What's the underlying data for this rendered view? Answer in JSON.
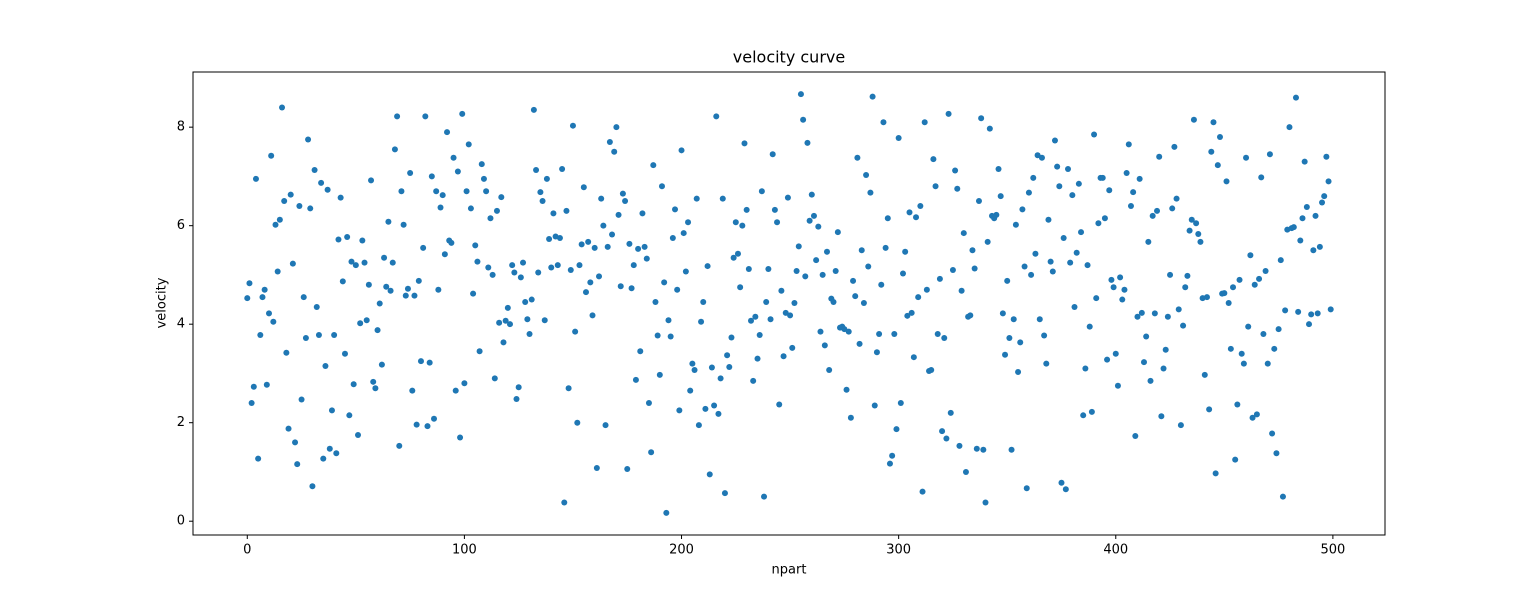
{
  "chart_data": {
    "type": "scatter",
    "title": "velocity curve",
    "xlabel": "npart",
    "ylabel": "velocity",
    "color": "#1f77b4",
    "xlim": [
      -25,
      524
    ],
    "ylim": [
      -0.28,
      9.12
    ],
    "xticks": [
      0,
      100,
      200,
      300,
      400,
      500
    ],
    "yticks": [
      0,
      2,
      4,
      6,
      8
    ],
    "grid": false,
    "x": [
      0,
      1,
      2,
      3,
      4,
      5,
      6,
      7,
      8,
      9,
      10,
      11,
      12,
      13,
      14,
      15,
      16,
      17,
      18,
      19,
      20,
      21,
      22,
      23,
      24,
      25,
      26,
      27,
      28,
      29,
      30,
      31,
      32,
      33,
      34,
      35,
      36,
      37,
      38,
      39,
      40,
      41,
      42,
      43,
      44,
      45,
      46,
      47,
      48,
      49,
      50,
      51,
      52,
      53,
      54,
      55,
      56,
      57,
      58,
      59,
      60,
      61,
      62,
      63,
      64,
      65,
      66,
      67,
      68,
      69,
      70,
      71,
      72,
      73,
      74,
      75,
      76,
      77,
      78,
      79,
      80,
      81,
      82,
      83,
      84,
      85,
      86,
      87,
      88,
      89,
      90,
      91,
      92,
      93,
      94,
      95,
      96,
      97,
      98,
      99,
      100,
      101,
      102,
      103,
      104,
      105,
      106,
      107,
      108,
      109,
      110,
      111,
      112,
      113,
      114,
      115,
      116,
      117,
      118,
      119,
      120,
      121,
      122,
      123,
      124,
      125,
      126,
      127,
      128,
      129,
      130,
      131,
      132,
      133,
      134,
      135,
      136,
      137,
      138,
      139,
      140,
      141,
      142,
      143,
      144,
      145,
      146,
      147,
      148,
      149,
      150,
      151,
      152,
      153,
      154,
      155,
      156,
      157,
      158,
      159,
      160,
      161,
      162,
      163,
      164,
      165,
      166,
      167,
      168,
      169,
      170,
      171,
      172,
      173,
      174,
      175,
      176,
      177,
      178,
      179,
      180,
      181,
      182,
      183,
      184,
      185,
      186,
      187,
      188,
      189,
      190,
      191,
      192,
      193,
      194,
      195,
      196,
      197,
      198,
      199,
      200,
      201,
      202,
      203,
      204,
      205,
      206,
      207,
      208,
      209,
      210,
      211,
      212,
      213,
      214,
      215,
      216,
      217,
      218,
      219,
      220,
      221,
      222,
      223,
      224,
      225,
      226,
      227,
      228,
      229,
      230,
      231,
      232,
      233,
      234,
      235,
      236,
      237,
      238,
      239,
      240,
      241,
      242,
      243,
      244,
      245,
      246,
      247,
      248,
      249,
      250,
      251,
      252,
      253,
      254,
      255,
      256,
      257,
      258,
      259,
      260,
      261,
      262,
      263,
      264,
      265,
      266,
      267,
      268,
      269,
      270,
      271,
      272,
      273,
      274,
      275,
      276,
      277,
      278,
      279,
      280,
      281,
      282,
      283,
      284,
      285,
      286,
      287,
      288,
      289,
      290,
      291,
      292,
      293,
      294,
      295,
      296,
      297,
      298,
      299,
      300,
      301,
      302,
      303,
      304,
      305,
      306,
      307,
      308,
      309,
      310,
      311,
      312,
      313,
      314,
      315,
      316,
      317,
      318,
      319,
      320,
      321,
      322,
      323,
      324,
      325,
      326,
      327,
      328,
      329,
      330,
      331,
      332,
      333,
      334,
      335,
      336,
      337,
      338,
      339,
      340,
      341,
      342,
      343,
      344,
      345,
      346,
      347,
      348,
      349,
      350,
      351,
      352,
      353,
      354,
      355,
      356,
      357,
      358,
      359,
      360,
      361,
      362,
      363,
      364,
      365,
      366,
      367,
      368,
      369,
      370,
      371,
      372,
      373,
      374,
      375,
      376,
      377,
      378,
      379,
      380,
      381,
      382,
      383,
      384,
      385,
      386,
      387,
      388,
      389,
      390,
      391,
      392,
      393,
      394,
      395,
      396,
      397,
      398,
      399,
      400,
      401,
      402,
      403,
      404,
      405,
      406,
      407,
      408,
      409,
      410,
      411,
      412,
      413,
      414,
      415,
      416,
      417,
      418,
      419,
      420,
      421,
      422,
      423,
      424,
      425,
      426,
      427,
      428,
      429,
      430,
      431,
      432,
      433,
      434,
      435,
      436,
      437,
      438,
      439,
      440,
      441,
      442,
      443,
      444,
      445,
      446,
      447,
      448,
      449,
      450,
      451,
      452,
      453,
      454,
      455,
      456,
      457,
      458,
      459,
      460,
      461,
      462,
      463,
      464,
      465,
      466,
      467,
      468,
      469,
      470,
      471,
      472,
      473,
      474,
      475,
      476,
      477,
      478,
      479,
      480,
      481,
      482,
      483,
      484,
      485,
      486,
      487,
      488,
      489,
      490,
      491,
      492,
      493,
      494,
      495,
      496,
      497,
      498,
      499
    ],
    "values": [
      4.53,
      4.83,
      2.4,
      2.73,
      6.95,
      1.27,
      3.78,
      4.55,
      4.7,
      2.77,
      4.22,
      7.42,
      4.05,
      6.02,
      5.07,
      6.12,
      8.4,
      6.5,
      3.42,
      1.88,
      6.63,
      5.23,
      1.6,
      1.16,
      6.4,
      2.47,
      4.55,
      3.72,
      7.75,
      6.35,
      0.71,
      7.13,
      4.35,
      3.78,
      6.87,
      1.27,
      3.15,
      6.73,
      1.47,
      2.25,
      3.78,
      1.38,
      5.72,
      6.57,
      4.87,
      3.4,
      5.77,
      2.15,
      5.27,
      2.78,
      5.2,
      1.75,
      4.02,
      5.7,
      5.25,
      4.08,
      4.8,
      6.92,
      2.83,
      2.7,
      3.88,
      4.42,
      3.18,
      5.35,
      4.76,
      6.08,
      4.68,
      5.25,
      7.55,
      8.22,
      1.53,
      6.7,
      6.02,
      4.58,
      4.72,
      7.07,
      2.65,
      4.58,
      1.96,
      4.88,
      3.25,
      5.55,
      8.22,
      1.93,
      3.22,
      7.0,
      2.08,
      6.7,
      4.7,
      6.37,
      6.62,
      5.42,
      7.9,
      5.7,
      5.65,
      7.38,
      2.65,
      7.1,
      1.7,
      8.27,
      2.8,
      6.7,
      7.65,
      6.35,
      4.62,
      5.6,
      5.27,
      3.45,
      7.25,
      6.95,
      6.7,
      5.15,
      6.15,
      5.0,
      2.9,
      6.3,
      4.03,
      6.58,
      3.63,
      4.07,
      4.33,
      4.0,
      5.2,
      5.05,
      2.48,
      2.72,
      4.95,
      5.25,
      4.45,
      4.1,
      3.8,
      4.5,
      8.35,
      7.13,
      5.05,
      6.68,
      6.5,
      4.08,
      6.95,
      5.73,
      5.15,
      6.25,
      5.78,
      5.2,
      5.75,
      7.15,
      0.38,
      6.3,
      2.7,
      5.1,
      8.03,
      3.85,
      2.0,
      5.2,
      5.62,
      6.78,
      4.65,
      5.67,
      4.85,
      4.18,
      5.55,
      1.08,
      4.97,
      6.55,
      6.0,
      1.95,
      5.57,
      7.7,
      5.82,
      7.5,
      8.0,
      6.22,
      4.77,
      6.65,
      6.5,
      1.06,
      5.63,
      4.73,
      5.2,
      2.87,
      5.53,
      3.45,
      6.25,
      5.57,
      5.33,
      2.4,
      1.4,
      7.23,
      4.45,
      3.77,
      2.97,
      6.8,
      4.85,
      0.17,
      4.08,
      3.75,
      5.75,
      6.33,
      4.7,
      2.25,
      7.53,
      5.85,
      5.07,
      6.07,
      2.65,
      3.2,
      3.07,
      6.55,
      1.95,
      4.05,
      4.45,
      2.28,
      5.18,
      0.95,
      3.12,
      2.35,
      8.22,
      2.18,
      2.9,
      6.55,
      0.57,
      3.37,
      3.13,
      3.73,
      5.35,
      6.07,
      5.43,
      4.75,
      6.0,
      7.67,
      6.32,
      5.12,
      4.07,
      2.85,
      4.15,
      3.3,
      3.78,
      6.7,
      0.5,
      4.45,
      5.12,
      4.1,
      7.45,
      6.32,
      6.07,
      2.37,
      4.68,
      3.35,
      4.23,
      6.57,
      4.18,
      3.52,
      4.43,
      5.08,
      5.58,
      8.67,
      8.15,
      4.97,
      7.68,
      6.1,
      6.63,
      6.2,
      5.3,
      5.98,
      3.85,
      5.0,
      3.57,
      5.47,
      3.07,
      4.52,
      4.45,
      5.08,
      5.87,
      3.93,
      3.95,
      3.9,
      2.67,
      3.85,
      2.1,
      4.88,
      4.57,
      7.38,
      3.6,
      5.5,
      4.43,
      7.03,
      5.17,
      6.67,
      8.62,
      2.35,
      3.43,
      3.8,
      4.8,
      8.1,
      5.55,
      6.15,
      1.17,
      1.33,
      3.8,
      1.87,
      7.78,
      2.4,
      5.03,
      5.47,
      4.17,
      6.27,
      4.23,
      3.33,
      6.17,
      4.55,
      6.4,
      0.6,
      8.1,
      4.7,
      3.05,
      3.07,
      7.35,
      6.8,
      3.8,
      4.92,
      1.83,
      3.72,
      1.68,
      8.27,
      2.2,
      5.1,
      7.12,
      6.75,
      1.53,
      4.68,
      5.85,
      1.0,
      4.15,
      4.18,
      5.5,
      5.13,
      1.47,
      6.5,
      8.18,
      1.45,
      0.38,
      5.67,
      7.97,
      6.2,
      6.15,
      6.22,
      7.15,
      6.6,
      4.22,
      3.38,
      4.88,
      3.72,
      1.45,
      4.1,
      6.02,
      3.03,
      3.63,
      6.33,
      5.17,
      0.67,
      6.67,
      5.0,
      6.97,
      5.43,
      7.43,
      4.1,
      7.38,
      3.77,
      3.2,
      6.12,
      5.27,
      5.07,
      7.73,
      7.2,
      6.8,
      0.78,
      5.75,
      0.65,
      7.15,
      5.25,
      6.62,
      4.35,
      5.45,
      6.85,
      5.87,
      2.15,
      3.1,
      5.2,
      3.95,
      2.22,
      7.85,
      4.53,
      6.05,
      6.97,
      6.97,
      6.15,
      3.28,
      6.72,
      4.9,
      4.75,
      3.4,
      2.75,
      4.95,
      4.5,
      4.7,
      7.07,
      7.65,
      6.4,
      6.68,
      1.73,
      4.15,
      6.95,
      4.23,
      3.23,
      3.75,
      5.67,
      2.85,
      6.2,
      4.22,
      6.3,
      7.4,
      2.13,
      3.1,
      3.48,
      4.15,
      5.0,
      6.35,
      7.6,
      6.55,
      4.3,
      1.95,
      3.97,
      4.75,
      4.98,
      5.9,
      6.12,
      8.15,
      6.05,
      5.83,
      5.67,
      4.53,
      2.97,
      4.55,
      2.27,
      7.5,
      8.1,
      0.97,
      7.23,
      7.8,
      4.62,
      4.63,
      6.9,
      4.43,
      3.5,
      4.75,
      1.25,
      2.37,
      4.9,
      3.4,
      3.2,
      7.38,
      3.95,
      5.4,
      2.1,
      4.8,
      2.17,
      4.92,
      6.98,
      3.8,
      5.08,
      3.2,
      7.45,
      1.78,
      3.5,
      1.38,
      3.9,
      5.3,
      0.5,
      4.28,
      5.92,
      8.0,
      5.95,
      5.97,
      8.6,
      4.25,
      5.7,
      6.15,
      7.3,
      6.38,
      4.0,
      4.2,
      5.5,
      6.2,
      4.22,
      5.57,
      6.47,
      6.6,
      7.4,
      6.9,
      4.3
    ]
  }
}
